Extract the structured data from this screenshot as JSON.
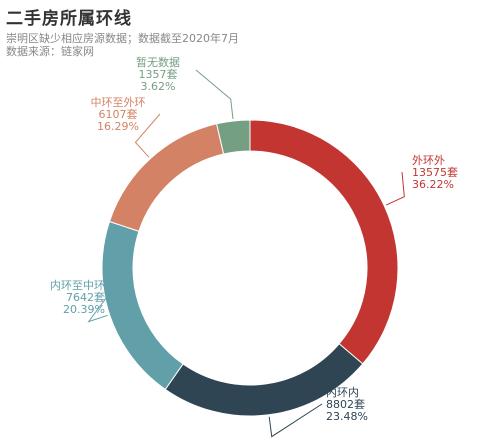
{
  "header": {
    "title": "二手房所属环线",
    "subtitle_line1": "崇明区缺少相应房源数据；数据截至2020年7月",
    "subtitle_line2": "数据来源：链家网"
  },
  "chart_data": {
    "type": "pie",
    "title": "二手房所属环线",
    "subtitle": "崇明区缺少相应房源数据；数据截至2020年7月",
    "source": "数据来源：链家网",
    "slices": [
      {
        "name": "外环外",
        "value": 13575,
        "value_label": "13575套",
        "percent_label": "36.22%",
        "color": "#c23531"
      },
      {
        "name": "内环内",
        "value": 8802,
        "value_label": "8802套",
        "percent_label": "23.48%",
        "color": "#2f4554"
      },
      {
        "name": "内环至中环",
        "value": 7642,
        "value_label": "7642套",
        "percent_label": "20.39%",
        "color": "#61a0a8"
      },
      {
        "name": "中环至外环",
        "value": 6107,
        "value_label": "6107套",
        "percent_label": "16.29%",
        "color": "#d48265"
      },
      {
        "name": "暂无数据",
        "value": 1357,
        "value_label": "1357套",
        "percent_label": "3.62%",
        "color": "#749f83"
      }
    ]
  }
}
